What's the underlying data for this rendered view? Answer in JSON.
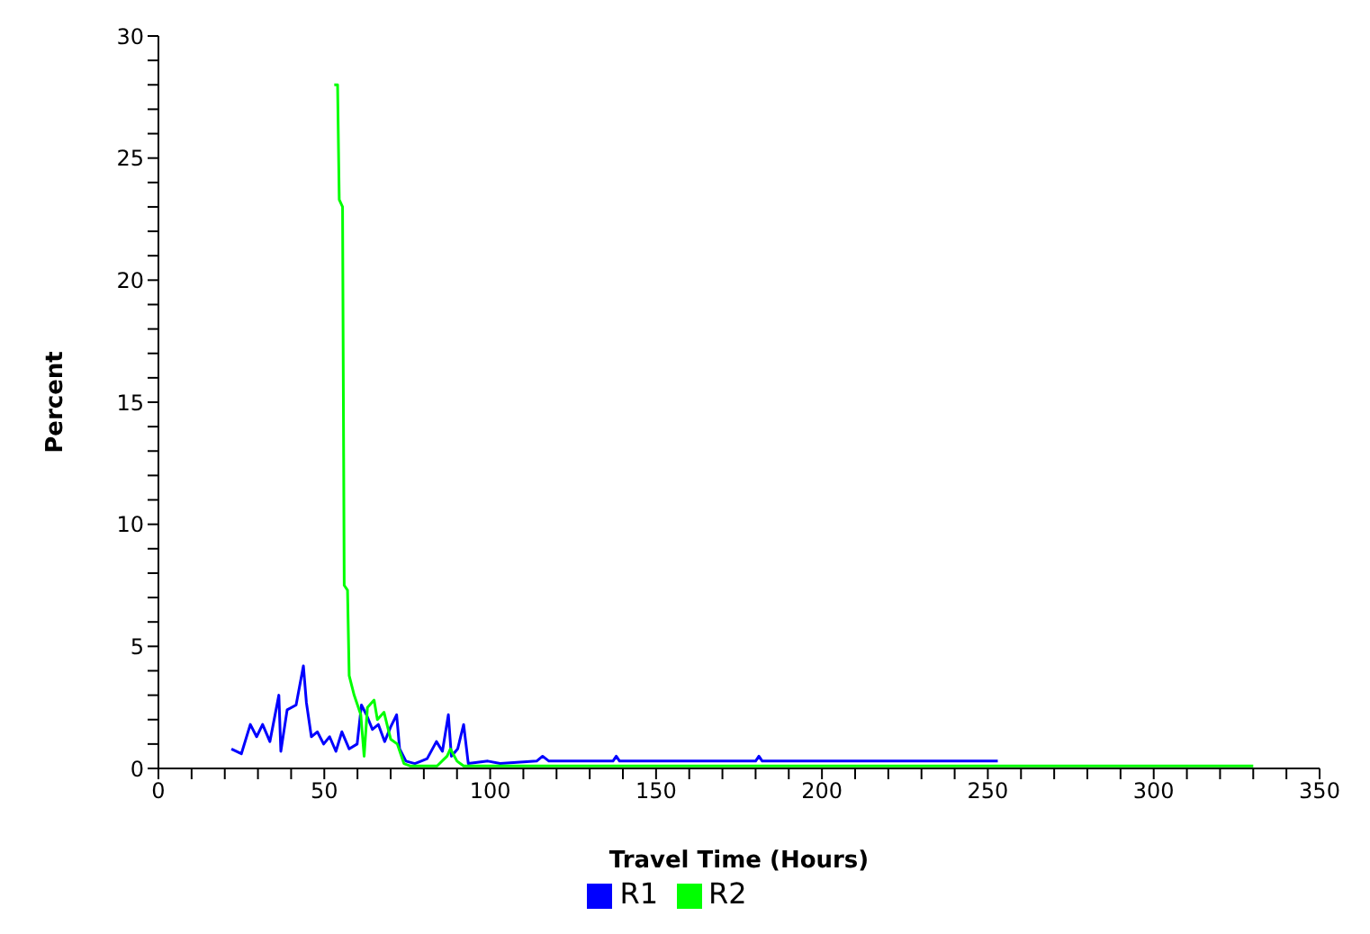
{
  "chart_data": {
    "type": "line",
    "xlabel": "Travel Time (Hours)",
    "ylabel": "Percent",
    "xlim": [
      0,
      350
    ],
    "xticks": [
      0,
      {
        "value": 10,
        "label": null
      },
      {
        "value": 20,
        "label": null
      },
      {
        "value": 30,
        "label": null
      },
      {
        "value": 40,
        "label": null
      },
      50,
      {
        "value": 60,
        "label": null
      },
      {
        "value": 70,
        "label": null
      },
      {
        "value": 80,
        "label": null
      },
      {
        "value": 90,
        "label": null
      },
      100,
      {
        "value": 110,
        "label": null
      },
      {
        "value": 120,
        "label": null
      },
      {
        "value": 130,
        "label": null
      },
      {
        "value": 140,
        "label": null
      },
      150,
      {
        "value": 160,
        "label": null
      },
      {
        "value": 170,
        "label": null
      },
      {
        "value": 180,
        "label": null
      },
      {
        "value": 190,
        "label": null
      },
      200,
      {
        "value": 210,
        "label": null
      },
      {
        "value": 220,
        "label": null
      },
      {
        "value": 230,
        "label": null
      },
      {
        "value": 240,
        "label": null
      },
      250,
      {
        "value": 260,
        "label": null
      },
      {
        "value": 270,
        "label": null
      },
      {
        "value": 280,
        "label": null
      },
      {
        "value": 290,
        "label": null
      },
      300,
      {
        "value": 310,
        "label": null
      },
      {
        "value": 320,
        "label": null
      },
      {
        "value": 330,
        "label": null
      },
      {
        "value": 340,
        "label": null
      },
      350
    ],
    "ylim": [
      0,
      30
    ],
    "yticks": [
      0,
      {
        "value": 1,
        "label": null
      },
      {
        "value": 2,
        "label": null
      },
      {
        "value": 3,
        "label": null
      },
      {
        "value": 4,
        "label": null
      },
      5,
      {
        "value": 6,
        "label": null
      },
      {
        "value": 7,
        "label": null
      },
      {
        "value": 8,
        "label": null
      },
      {
        "value": 9,
        "label": null
      },
      10,
      {
        "value": 11,
        "label": null
      },
      {
        "value": 12,
        "label": null
      },
      {
        "value": 13,
        "label": null
      },
      {
        "value": 14,
        "label": null
      },
      15,
      {
        "value": 16,
        "label": null
      },
      {
        "value": 17,
        "label": null
      },
      {
        "value": 18,
        "label": null
      },
      {
        "value": 19,
        "label": null
      },
      20,
      {
        "value": 21,
        "label": null
      },
      {
        "value": 22,
        "label": null
      },
      {
        "value": 23,
        "label": null
      },
      {
        "value": 24,
        "label": null
      },
      25,
      {
        "value": 26,
        "label": null
      },
      {
        "value": 27,
        "label": null
      },
      {
        "value": 28,
        "label": null
      },
      {
        "value": 29,
        "label": null
      },
      30
    ],
    "grid": false,
    "legend": "bottom",
    "marker": "none",
    "line_style": "solid",
    "series": [
      {
        "name": "R1",
        "color": "#0000ff",
        "x": [
          22,
          25,
          27.7,
          29.6,
          31.4,
          33.6,
          36.3,
          36.9,
          38.8,
          41.5,
          43.7,
          44.6,
          46.1,
          47.9,
          49.8,
          51.6,
          53.5,
          55.3,
          57.5,
          59.9,
          61.2,
          62.7,
          64.5,
          66.3,
          68.2,
          70,
          71.8,
          72.7,
          74.6,
          77.3,
          79.2,
          81,
          83.8,
          85.6,
          87.4,
          88.3,
          90.2,
          92,
          93.4,
          99.3,
          103,
          114,
          115.8,
          117.7,
          137,
          138,
          139,
          180,
          181,
          182,
          253
        ],
        "values": [
          0.8,
          0.6,
          1.8,
          1.3,
          1.8,
          1.1,
          3,
          0.7,
          2.4,
          2.6,
          4.2,
          2.7,
          1.3,
          1.5,
          1,
          1.3,
          0.7,
          1.5,
          0.8,
          1,
          2.6,
          2.2,
          1.6,
          1.8,
          1.1,
          1.7,
          2.2,
          0.8,
          0.3,
          0.2,
          0.3,
          0.4,
          1.1,
          0.7,
          2.2,
          0.5,
          0.8,
          1.8,
          0.2,
          0.3,
          0.2,
          0.3,
          0.5,
          0.3,
          0.3,
          0.5,
          0.3,
          0.3,
          0.5,
          0.3,
          0.3
        ]
      },
      {
        "name": "R2",
        "color": "#00ff00",
        "x": [
          53,
          54,
          54.5,
          55.5,
          56,
          57,
          57.5,
          59,
          61,
          62,
          63,
          65,
          66,
          68,
          70,
          72,
          74,
          76,
          84,
          87,
          88,
          90,
          92,
          330
        ],
        "values": [
          28,
          28,
          23.3,
          23,
          7.5,
          7.3,
          3.8,
          3,
          2.2,
          0.5,
          2.5,
          2.8,
          2,
          2.3,
          1.2,
          1,
          0.2,
          0.1,
          0.1,
          0.5,
          0.8,
          0.3,
          0.1,
          0.1
        ]
      }
    ]
  }
}
